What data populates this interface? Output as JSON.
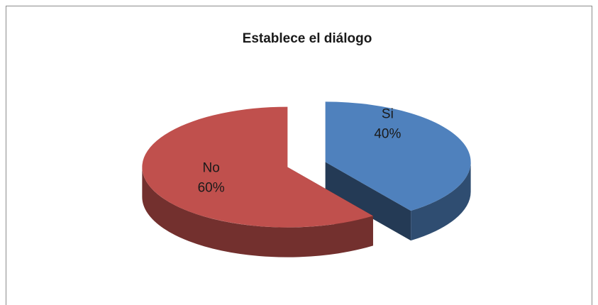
{
  "chart_data": {
    "type": "pie",
    "title": "Establece  el diálogo",
    "categories": [
      "Si",
      "No"
    ],
    "values": [
      40,
      60
    ],
    "value_labels": [
      "40%",
      "60%"
    ],
    "colors": [
      "#4f81bd",
      "#c0504d"
    ],
    "three_d": true,
    "exploded": true
  }
}
